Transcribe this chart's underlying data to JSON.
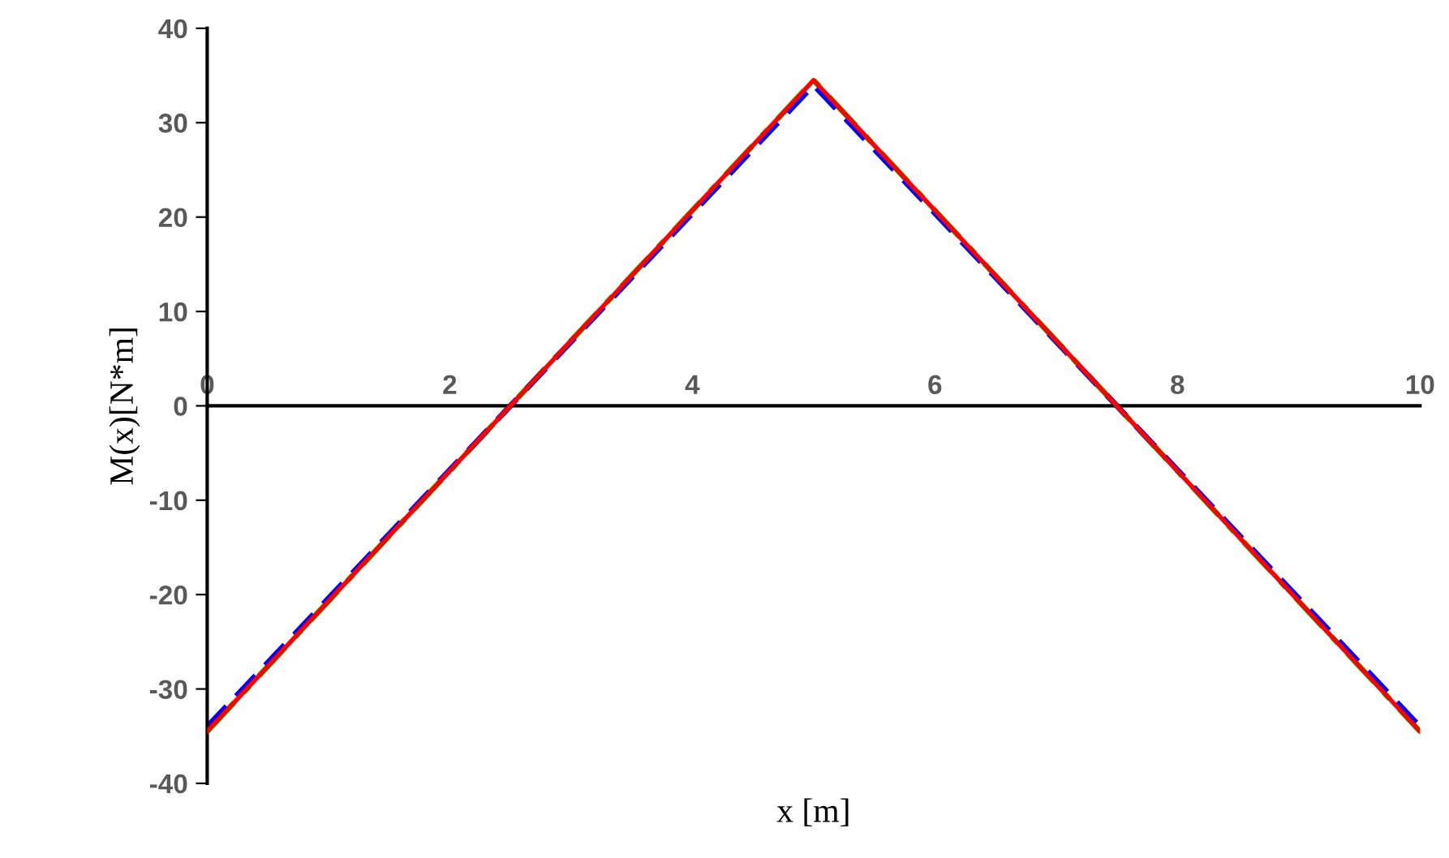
{
  "chart_data": {
    "type": "line",
    "xlabel": "x [m]",
    "ylabel": "M(x)[N*m]",
    "xlim": [
      0,
      10
    ],
    "xticks": [
      0,
      2,
      4,
      6,
      8,
      10
    ],
    "ylim": [
      -40,
      40
    ],
    "yticks": [
      -40,
      -30,
      -20,
      -10,
      0,
      10,
      20,
      30,
      40
    ],
    "grid": false,
    "x": [
      0,
      5,
      10
    ],
    "series": [
      {
        "color": "#ff0000",
        "line_style": "solid",
        "values": [
          -34.5,
          34.5,
          -34.5
        ]
      },
      {
        "color": "#00dd00",
        "line_style": "dashdot",
        "values": [
          -34.5,
          34.5,
          -34.5
        ]
      },
      {
        "color": "#0000ff",
        "line_style": "dashed",
        "values": [
          -34,
          34,
          -34
        ]
      }
    ]
  }
}
